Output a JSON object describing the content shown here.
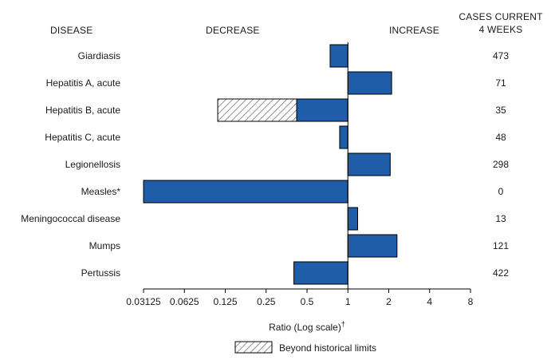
{
  "chart_data": {
    "type": "bar",
    "orientation": "horizontal",
    "scale": "log2",
    "headers": {
      "disease": "DISEASE",
      "decrease": "DECREASE",
      "increase": "INCREASE",
      "cases_line1": "CASES CURRENT",
      "cases_line2": "4 WEEKS"
    },
    "categories": [
      "Giardiasis",
      "Hepatitis A, acute",
      "Hepatitis B, acute",
      "Hepatitis C, acute",
      "Legionellosis",
      "Measles*",
      "Meningococcal disease",
      "Mumps",
      "Pertussis"
    ],
    "ratios": [
      0.74,
      2.1,
      0.42,
      0.87,
      2.05,
      0.03125,
      1.18,
      2.3,
      0.4
    ],
    "beyond_historical_limits": [
      null,
      null,
      0.42,
      null,
      null,
      null,
      null,
      null,
      null
    ],
    "beyond_historical_limits_start": [
      null,
      null,
      0.11,
      null,
      null,
      null,
      null,
      null,
      null
    ],
    "cases_current_4_weeks": [
      "473",
      "71",
      "35",
      "48",
      "298",
      "0",
      "13",
      "121",
      "422"
    ],
    "x_ticks": [
      0.03125,
      0.0625,
      0.125,
      0.25,
      0.5,
      1,
      2,
      4,
      8
    ],
    "x_tick_labels": [
      "0.03125",
      "0.0625",
      "0.125",
      "0.25",
      "0.5",
      "1",
      "2",
      "4",
      "8"
    ],
    "xlabel": "Ratio (Log scale)",
    "xlabel_mark": "†",
    "xlim": [
      0.03125,
      8
    ],
    "legend": {
      "label": "Beyond historical limits",
      "position": "bottom-center"
    },
    "colors": {
      "bar": "#1f5da8",
      "bar_stroke": "#000000",
      "hatch_fill": "#ffffff",
      "hatch_line": "#555555"
    }
  }
}
